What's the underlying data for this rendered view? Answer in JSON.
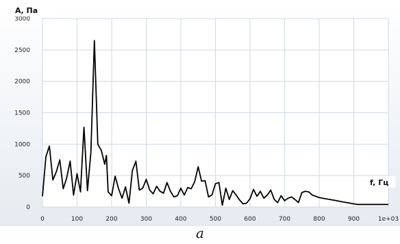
{
  "caption": "a",
  "chart_data": {
    "type": "line",
    "title": "",
    "xlabel": "f, Гц",
    "ylabel": "А, Па",
    "xlim": [
      0,
      1000
    ],
    "ylim": [
      0,
      3000
    ],
    "x_ticks": [
      "0",
      "100",
      "200",
      "300",
      "400",
      "500",
      "600",
      "700",
      "800",
      "900",
      "1e+03"
    ],
    "y_ticks": [
      "0",
      "500",
      "1000",
      "1500",
      "2000",
      "2500",
      "3000"
    ],
    "grid": true,
    "line_color": "#000000",
    "grid_color": "#cfd8e4",
    "x": [
      0,
      10,
      20,
      30,
      40,
      50,
      60,
      70,
      80,
      90,
      100,
      110,
      120,
      130,
      140,
      150,
      160,
      170,
      180,
      185,
      190,
      200,
      210,
      220,
      230,
      240,
      250,
      260,
      270,
      280,
      290,
      300,
      310,
      320,
      330,
      340,
      350,
      360,
      370,
      380,
      390,
      400,
      410,
      420,
      430,
      440,
      450,
      460,
      470,
      480,
      490,
      500,
      510,
      520,
      530,
      540,
      550,
      560,
      570,
      580,
      590,
      600,
      610,
      620,
      630,
      640,
      650,
      660,
      670,
      680,
      690,
      700,
      710,
      720,
      730,
      740,
      750,
      760,
      770,
      780,
      790,
      800,
      810,
      820,
      830,
      840,
      850,
      860,
      870,
      880,
      890,
      900,
      910,
      920,
      930,
      940,
      950,
      960,
      970,
      980,
      990,
      1000
    ],
    "y": [
      170,
      800,
      970,
      430,
      560,
      750,
      290,
      460,
      730,
      190,
      530,
      240,
      1270,
      260,
      870,
      2650,
      1000,
      900,
      680,
      820,
      240,
      180,
      490,
      290,
      140,
      320,
      60,
      580,
      730,
      270,
      300,
      440,
      270,
      210,
      330,
      250,
      220,
      390,
      250,
      160,
      180,
      300,
      190,
      310,
      290,
      400,
      640,
      410,
      420,
      160,
      190,
      370,
      390,
      30,
      300,
      120,
      260,
      190,
      110,
      50,
      60,
      130,
      280,
      170,
      250,
      140,
      190,
      270,
      120,
      70,
      180,
      100,
      140,
      160,
      120,
      70,
      230,
      250,
      240,
      190,
      170,
      150,
      140,
      130,
      120,
      110,
      100,
      90,
      80,
      70,
      60,
      50,
      40,
      40,
      40,
      40,
      40,
      40,
      40,
      40,
      40,
      40
    ]
  }
}
